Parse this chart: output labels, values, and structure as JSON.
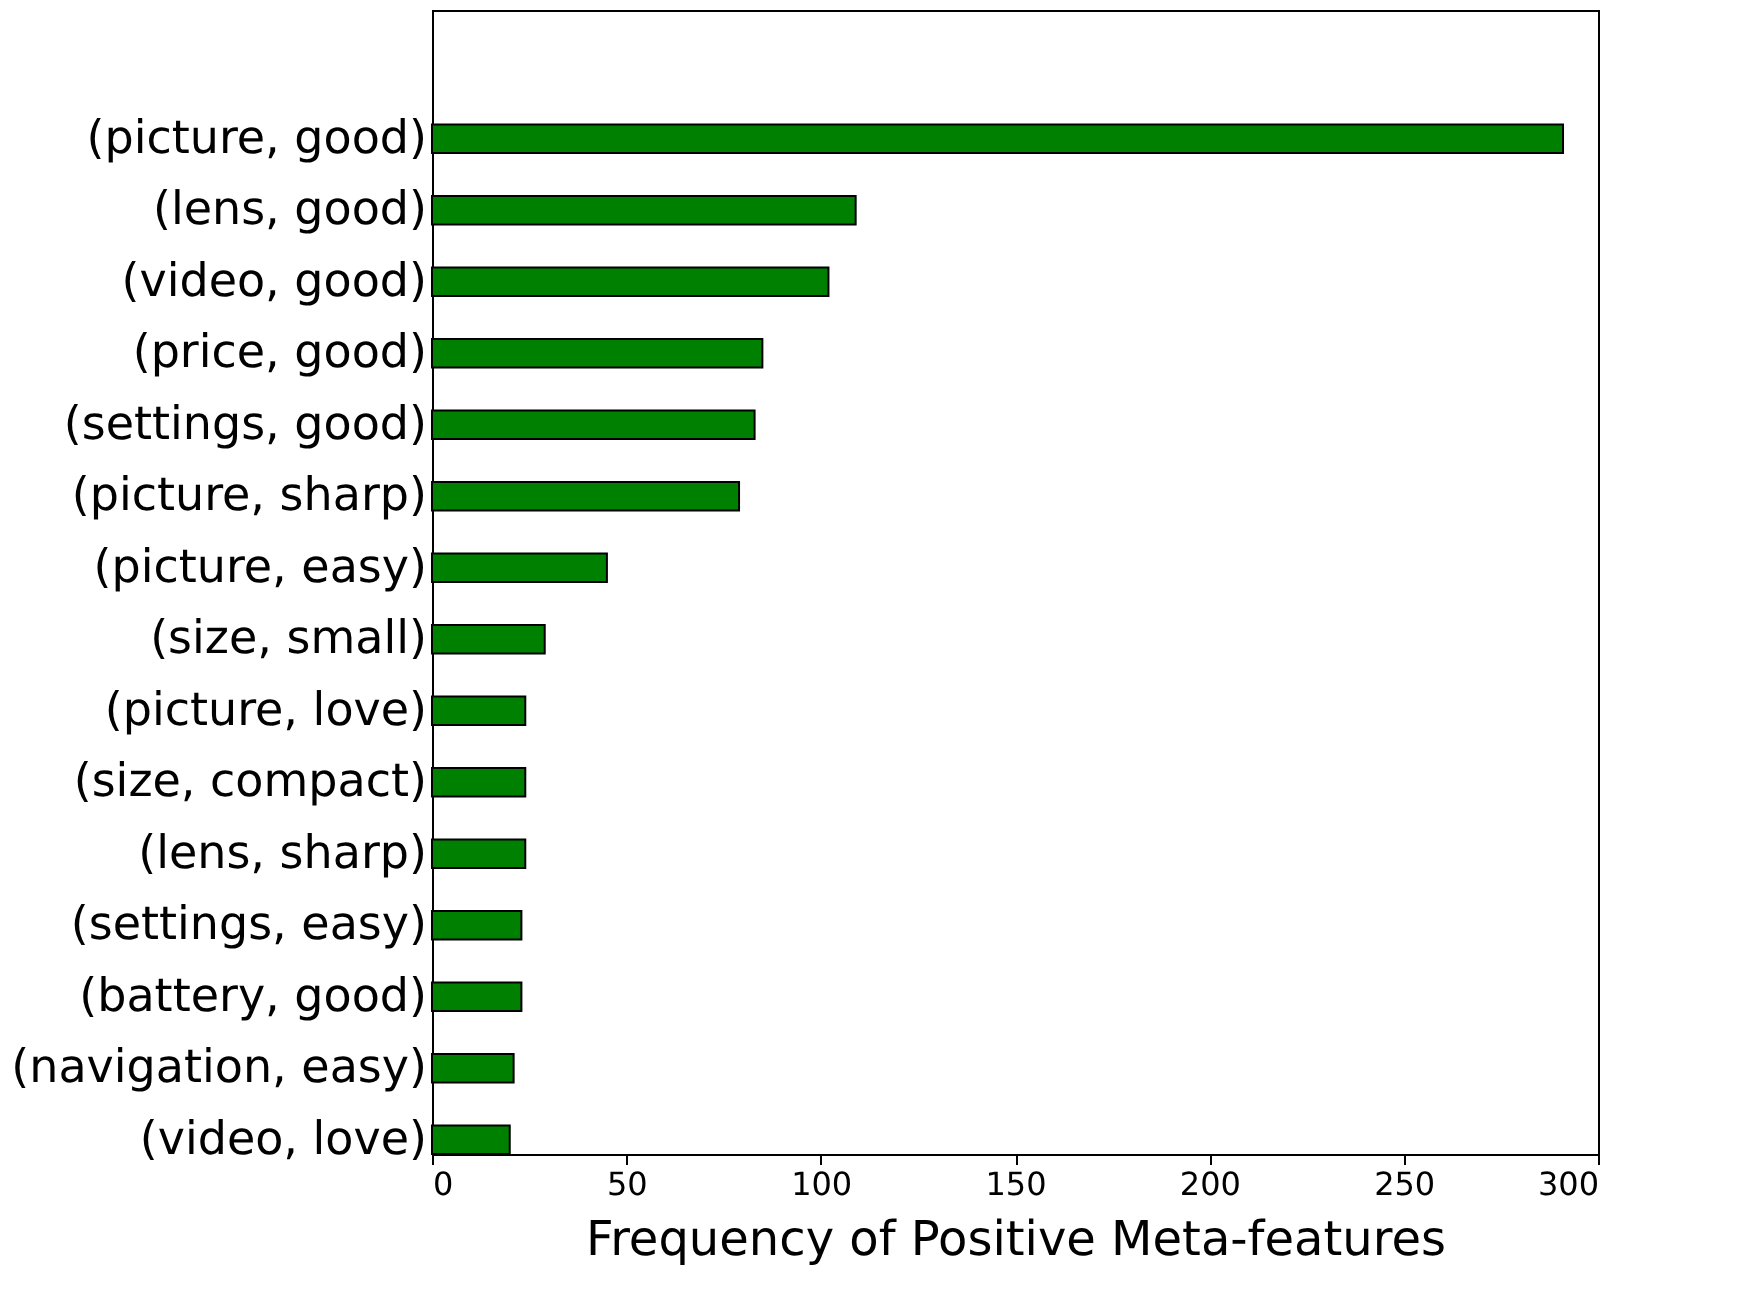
{
  "chart_data": {
    "type": "bar",
    "orientation": "horizontal",
    "xlabel": "Frequency of Positive Meta-features",
    "categories": [
      "(picture, good)",
      "(lens, good)",
      "(video, good)",
      "(price, good)",
      "(settings, good)",
      "(picture, sharp)",
      "(picture, easy)",
      "(size, small)",
      "(picture, love)",
      "(size, compact)",
      "(lens, sharp)",
      "(settings, easy)",
      "(battery, good)",
      "(navigation, easy)",
      "(video, love)"
    ],
    "values": [
      291,
      109,
      102,
      85,
      83,
      79,
      45,
      29,
      24,
      24,
      24,
      23,
      23,
      21,
      20
    ],
    "color": "#008000",
    "xlim": [
      0,
      300
    ],
    "xticks": [
      0,
      50,
      100,
      150,
      200,
      250,
      300
    ],
    "grid": false
  }
}
